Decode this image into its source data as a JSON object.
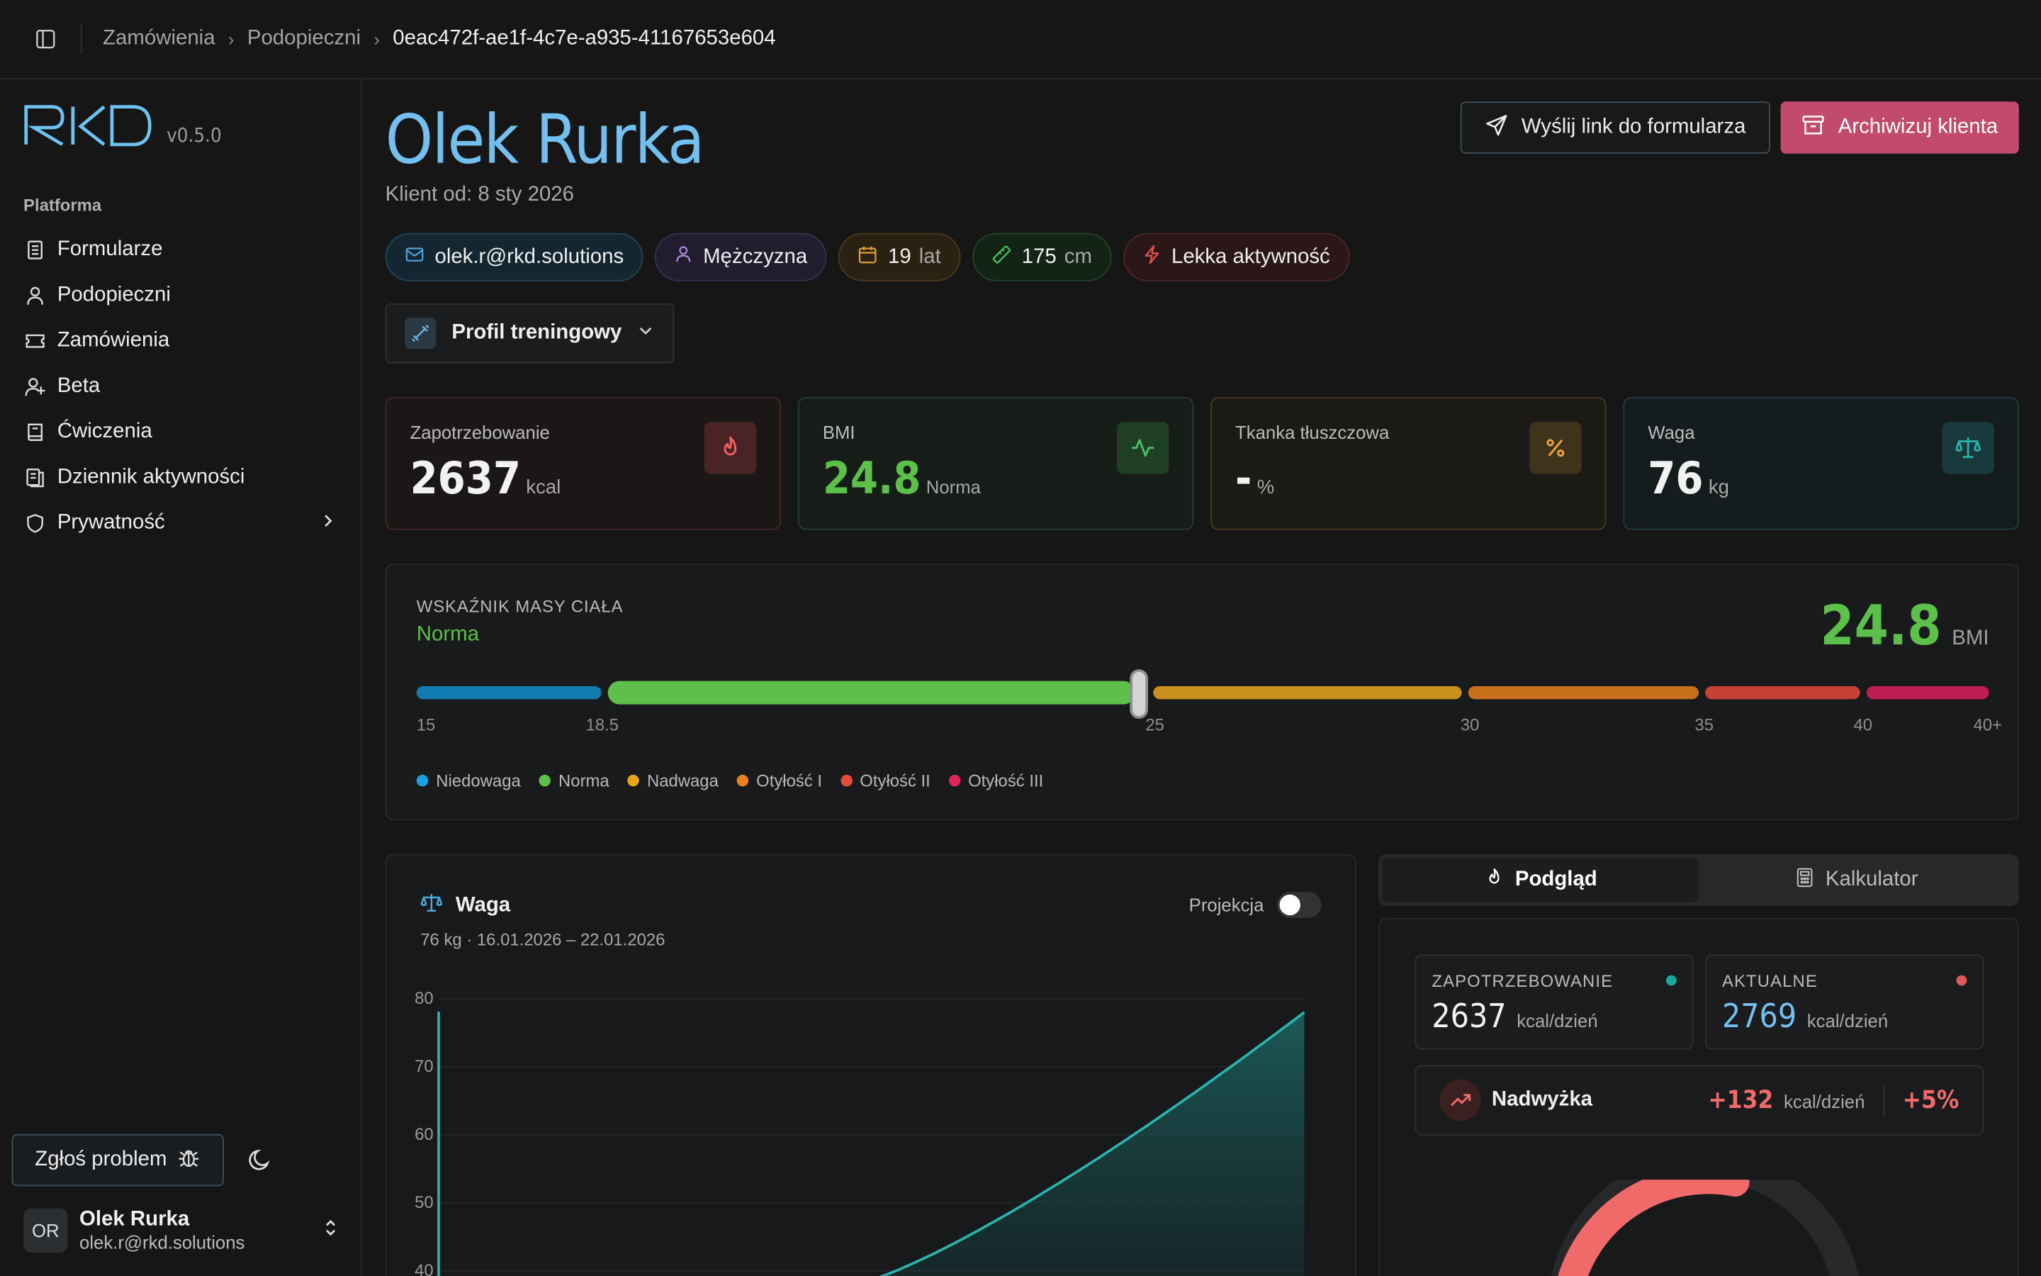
{
  "topbar": {
    "breadcrumb": [
      "Zamówienia",
      "Podopieczni",
      "0eac472f-ae1f-4c7e-a935-41167653e604"
    ]
  },
  "sidebar": {
    "logo": "RKD",
    "version": "v0.5.0",
    "section": "Platforma",
    "items": [
      {
        "label": "Formularze",
        "icon": "form-icon"
      },
      {
        "label": "Podopieczni",
        "icon": "user-icon"
      },
      {
        "label": "Zamówienia",
        "icon": "ticket-icon"
      },
      {
        "label": "Beta",
        "icon": "user-plus-icon"
      },
      {
        "label": "Ćwiczenia",
        "icon": "book-icon"
      },
      {
        "label": "Dziennik aktywności",
        "icon": "log-icon"
      },
      {
        "label": "Prywatność",
        "icon": "shield-icon"
      }
    ],
    "report_label": "Zgłoś problem",
    "user": {
      "initials": "OR",
      "name": "Olek Rurka",
      "email": "olek.r@rkd.solutions"
    }
  },
  "header": {
    "title": "Olek Rurka",
    "subtitle": "Klient od: 8 sty 2026",
    "send_label": "Wyślij link do formularza",
    "archive_label": "Archiwizuj klienta"
  },
  "chips": {
    "email": "olek.r@rkd.solutions",
    "sex": "Mężczyzna",
    "age": "19",
    "age_unit": "lat",
    "height": "175",
    "height_unit": "cm",
    "activity": "Lekka aktywność"
  },
  "profile": {
    "label": "Profil treningowy"
  },
  "stats": {
    "demand": {
      "label": "Zapotrzebowanie",
      "value": "2637",
      "unit": "kcal"
    },
    "bmi": {
      "label": "BMI",
      "value": "24.8",
      "unit": "Norma"
    },
    "fat": {
      "label": "Tkanka tłuszczowa",
      "value": "-",
      "unit": "%"
    },
    "weight": {
      "label": "Waga",
      "value": "76",
      "unit": "kg"
    }
  },
  "bmi_card": {
    "label": "WSKAŹNIK MASY CIAŁA",
    "category": "Norma",
    "value": "24.8",
    "unit": "BMI",
    "bmi_value": 24.8,
    "ticks": [
      "15",
      "18.5",
      "25",
      "30",
      "35",
      "40",
      "40+"
    ],
    "legend": [
      {
        "label": "Niedowaga",
        "color": "#1a9fe0"
      },
      {
        "label": "Norma",
        "color": "#5cc04a"
      },
      {
        "label": "Nadwaga",
        "color": "#e8a51c"
      },
      {
        "label": "Otyłość I",
        "color": "#e8821c"
      },
      {
        "label": "Otyłość II",
        "color": "#e84a3a"
      },
      {
        "label": "Otyłość III",
        "color": "#e0245e"
      }
    ]
  },
  "weight_card": {
    "title": "Waga",
    "subtitle": "76 kg · 16.01.2026 – 22.01.2026",
    "projection_label": "Projekcja",
    "projection_on": false,
    "chart_data": {
      "type": "area",
      "yticks": [
        "80",
        "70",
        "60",
        "50",
        "40"
      ],
      "ylim": [
        40,
        80
      ],
      "color": "#2ab3b0"
    }
  },
  "tabs": {
    "preview": "Podgląd",
    "calculator": "Kalkulator",
    "active": "preview"
  },
  "calc": {
    "demand": {
      "label": "ZAPOTRZEBOWANIE",
      "value": "2637",
      "unit": "kcal/dzień",
      "color": "#1aa9a0"
    },
    "current": {
      "label": "AKTUALNE",
      "value": "2769",
      "unit": "kcal/dzień",
      "color": "#e05a5a"
    },
    "surplus": {
      "label": "Nadwyżka",
      "value": "+132",
      "unit": "kcal/dzień",
      "percent": "+5%"
    }
  }
}
